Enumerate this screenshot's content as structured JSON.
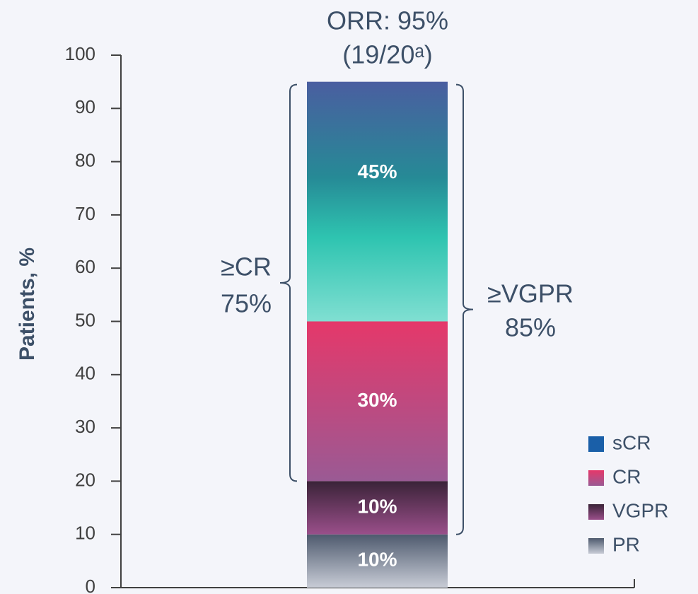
{
  "chart_data": {
    "type": "stacked_bar",
    "y_label": "Patients, %",
    "categories": [
      null
    ],
    "ylim": [
      0,
      100
    ],
    "yticks": [
      0,
      10,
      20,
      30,
      40,
      50,
      60,
      70,
      80,
      90,
      100
    ],
    "series": [
      {
        "name": "PR",
        "color": "#7a8496",
        "values": [
          10
        ],
        "value_labels": [
          "10%"
        ]
      },
      {
        "name": "VGPR",
        "color": "#5a2f55",
        "values": [
          10
        ],
        "value_labels": [
          "10%"
        ]
      },
      {
        "name": "CR",
        "color": "#e5386a",
        "values": [
          30
        ],
        "value_labels": [
          "30%"
        ]
      },
      {
        "name": "sCR",
        "color": "#1a5fa8",
        "values": [
          45
        ],
        "value_labels": [
          "45%"
        ]
      }
    ],
    "legend_order": [
      3,
      2,
      1,
      0
    ],
    "annotations": [
      "ORR: 95%",
      "(19/20ᵃ)",
      "≥CR",
      "75%",
      "≥VGPR",
      "85%"
    ]
  }
}
